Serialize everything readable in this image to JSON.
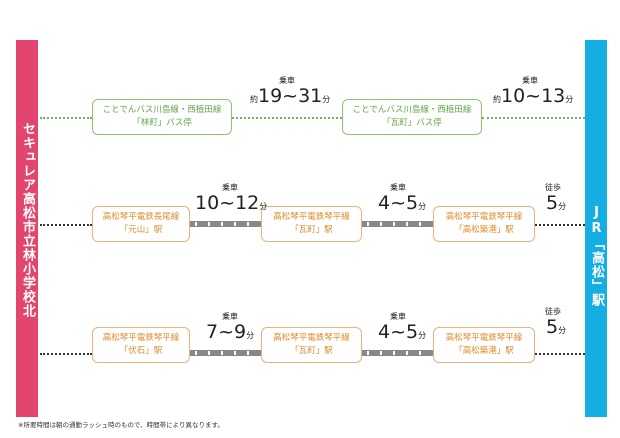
{
  "origin": "セキュレア高松市立林小学校北",
  "destination": "JR「高松」駅",
  "routes": [
    {
      "stops": [
        {
          "line": "ことでんバス川島線・西植田線",
          "name": "「林町」バス停"
        },
        {
          "line": "ことでんバス川島線・西植田線",
          "name": "「瓦町」バス停"
        }
      ],
      "segments": [
        {
          "label": "乗車",
          "prefix": "約",
          "time": "19~31",
          "unit": "分"
        },
        {
          "label": "乗車",
          "prefix": "約",
          "time": "10~13",
          "unit": "分"
        }
      ]
    },
    {
      "stops": [
        {
          "line": "高松琴平電鉄長尾線",
          "name": "「元山」駅"
        },
        {
          "line": "高松琴平電鉄琴平線",
          "name": "「瓦町」駅"
        },
        {
          "line": "高松琴平電鉄琴平線",
          "name": "「高松築港」駅"
        }
      ],
      "segments": [
        {
          "label": "乗車",
          "time": "10~12",
          "unit": "分"
        },
        {
          "label": "乗車",
          "time": "4~5",
          "unit": "分"
        },
        {
          "label": "徒歩",
          "time": "5",
          "unit": "分"
        }
      ]
    },
    {
      "stops": [
        {
          "line": "高松琴平電鉄琴平線",
          "name": "「伏石」駅"
        },
        {
          "line": "高松琴平電鉄琴平線",
          "name": "「瓦町」駅"
        },
        {
          "line": "高松琴平電鉄琴平線",
          "name": "「高松築港」駅"
        }
      ],
      "segments": [
        {
          "label": "乗車",
          "time": "7~9",
          "unit": "分"
        },
        {
          "label": "乗車",
          "time": "4~5",
          "unit": "分"
        },
        {
          "label": "徒歩",
          "time": "5",
          "unit": "分"
        }
      ]
    }
  ],
  "note": "※所要時間は朝の通勤ラッシュ時のもので、時間帯により異なります。",
  "colors": {
    "origin": "#e2466f",
    "destination": "#14aee3",
    "bus": "#5fa846",
    "rail": "#e38a2b"
  }
}
